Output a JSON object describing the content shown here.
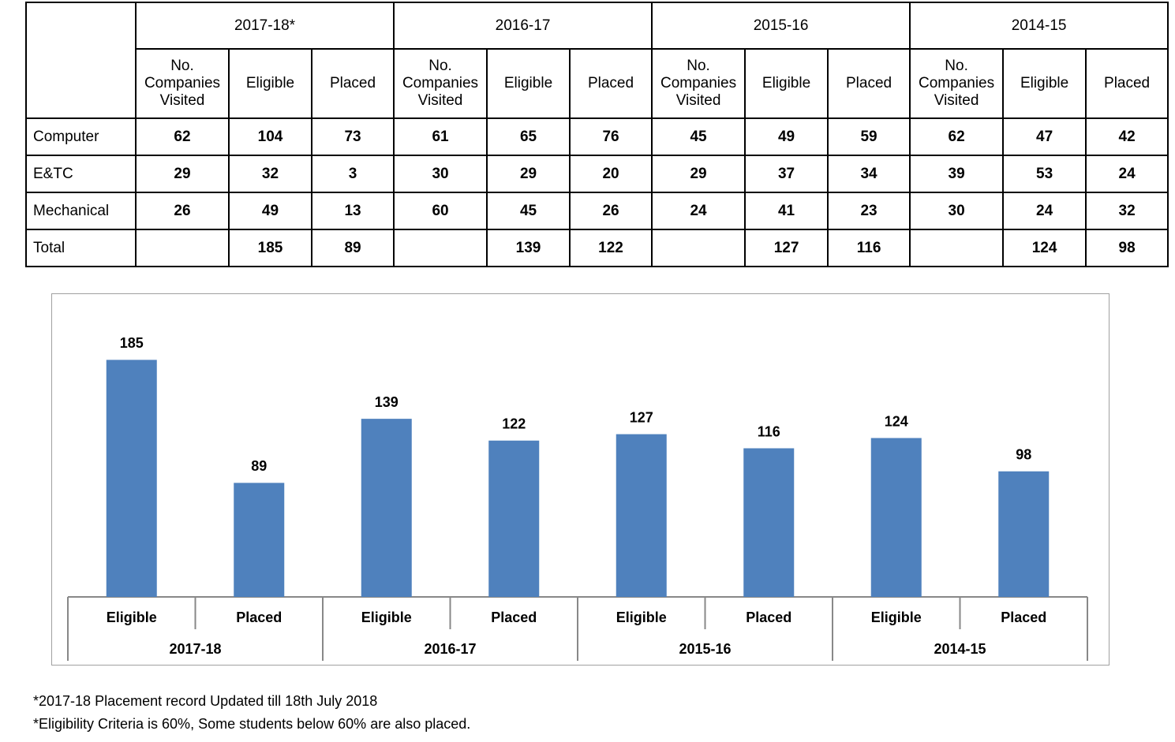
{
  "table": {
    "years": [
      "2017-18*",
      "2016-17",
      "2015-16",
      "2014-15"
    ],
    "subheaders": [
      "No. Companies Visited",
      "Eligible",
      "Placed"
    ],
    "rows": [
      {
        "label": "Computer",
        "cells": [
          62,
          104,
          73,
          61,
          65,
          76,
          45,
          49,
          59,
          62,
          47,
          42
        ]
      },
      {
        "label": "E&TC",
        "cells": [
          29,
          32,
          3,
          30,
          29,
          20,
          29,
          37,
          34,
          39,
          53,
          24
        ]
      },
      {
        "label": "Mechanical",
        "cells": [
          26,
          49,
          13,
          60,
          45,
          26,
          24,
          41,
          23,
          30,
          24,
          32
        ]
      },
      {
        "label": "Total",
        "cells": [
          null,
          185,
          89,
          null,
          139,
          122,
          null,
          127,
          116,
          null,
          124,
          98
        ]
      }
    ]
  },
  "chart_data": {
    "type": "bar",
    "groups": [
      "2017-18",
      "2016-17",
      "2015-16",
      "2014-15"
    ],
    "categories": [
      "Eligible",
      "Placed",
      "Eligible",
      "Placed",
      "Eligible",
      "Placed",
      "Eligible",
      "Placed"
    ],
    "values": [
      185,
      89,
      139,
      122,
      127,
      116,
      124,
      98
    ],
    "color": "#4f81bd",
    "ylim": [
      0,
      200
    ]
  },
  "notes": [
    "*2017-18 Placement record Updated till 18th July 2018",
    "*Eligibility Criteria is 60%, Some students below 60% are also placed."
  ]
}
